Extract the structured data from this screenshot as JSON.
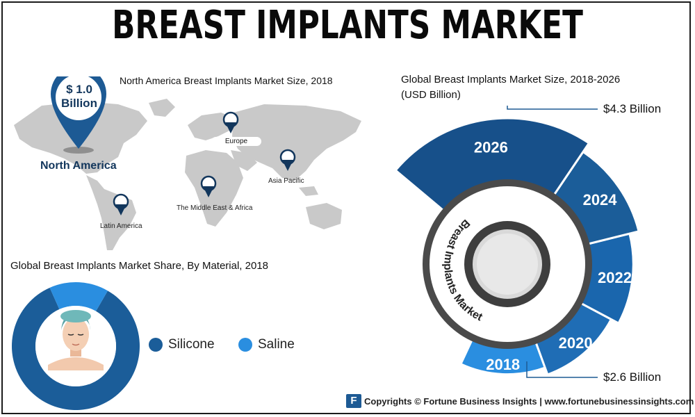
{
  "header": {
    "title": "BREAST IMPLANTS MARKET"
  },
  "map_section": {
    "title": "North America Breast Implants Market Size, 2018",
    "na_value": "$ 1.0",
    "na_unit": "Billion",
    "na_label": "North America",
    "regions": [
      "Europe",
      "Asia Pacific",
      "The Middle East & Africa",
      "Latin America"
    ]
  },
  "material_section": {
    "title": "Global Breast Implants Market Share, By Material, 2018",
    "legend": [
      {
        "name": "Silicone",
        "color": "#1b5d99"
      },
      {
        "name": "Saline",
        "color": "#2a8ee0"
      }
    ]
  },
  "growth_section": {
    "title_line1": "Global Breast Implants Market Size, 2018-2026",
    "title_line2": "(USD Billion)",
    "callout_top": "$4.3 Billion",
    "callout_bottom": "$2.6 Billion",
    "ring_label": "Breast Implants Market"
  },
  "footer": {
    "logo": "F",
    "text": "Copyrights © Fortune Business Insights | www.fortunebusinessinsights.com"
  },
  "colors": {
    "dark_blue": "#1b5d99",
    "mid_blue": "#1f6db5",
    "light_blue": "#2a8ee0",
    "navy": "#12365c"
  },
  "chart_data": [
    {
      "type": "pie",
      "title": "Global Breast Implants Market Share, By Material, 2018",
      "categories": [
        "Silicone",
        "Saline"
      ],
      "values": [
        85,
        15
      ],
      "colors": [
        "#1b5d99",
        "#2a8ee0"
      ]
    },
    {
      "type": "bar",
      "title": "Global Breast Implants Market Size, 2018-2026",
      "ylabel": "USD Billion",
      "categories": [
        "2018",
        "2020",
        "2022",
        "2024",
        "2026"
      ],
      "values": [
        2.6,
        2.95,
        3.35,
        3.8,
        4.3
      ],
      "colors": [
        "#2a8ee0",
        "#1f6db5",
        "#1a66ad",
        "#1b5d99",
        "#17508a"
      ]
    }
  ]
}
